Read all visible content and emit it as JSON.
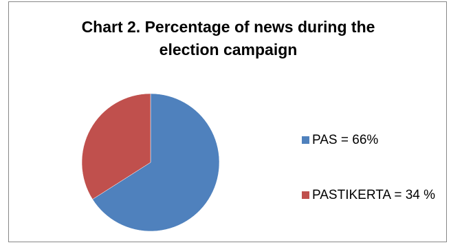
{
  "chart_data": {
    "type": "pie",
    "title_lines": [
      "Chart 2. Percentage of news  during the",
      "election campaign"
    ],
    "slices": [
      {
        "label": "PAS = 66%",
        "value": 66,
        "color": "#4F81BD"
      },
      {
        "label": "PASTIKERTA = 34 %",
        "value": 34,
        "color": "#C0504D"
      }
    ],
    "legend_position": "right"
  }
}
